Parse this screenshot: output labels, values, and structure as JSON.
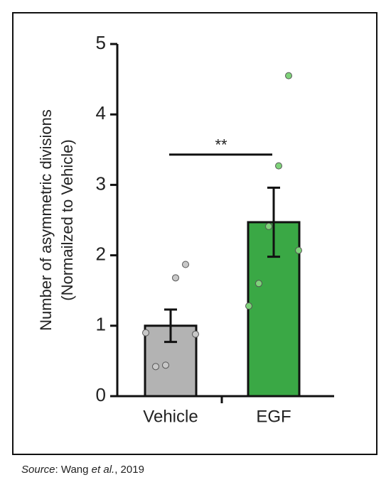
{
  "chart_data": {
    "type": "bar",
    "y_label": [
      "Number of asymmetric divisions",
      "(Normailzed to Vehicle)"
    ],
    "categories": [
      "Vehicle",
      "EGF"
    ],
    "values": [
      1.0,
      2.47
    ],
    "errors": [
      0.23,
      0.49
    ],
    "colors": [
      "#b3b3b3",
      "#3aa845"
    ],
    "point_colors": [
      "#c8c8c8",
      "#7fd37a"
    ],
    "points": [
      [
        0.9,
        0.42,
        0.44,
        1.68,
        1.87,
        0.88
      ],
      [
        1.28,
        1.6,
        2.41,
        3.27,
        4.55,
        2.07
      ]
    ],
    "ylim": [
      0,
      5
    ],
    "yticks": [
      0,
      1,
      2,
      3,
      4,
      5
    ],
    "significance": {
      "label": "**",
      "y": 3.43
    },
    "source": [
      "Source",
      ": Wang ",
      "et al.",
      ", 2019"
    ]
  }
}
